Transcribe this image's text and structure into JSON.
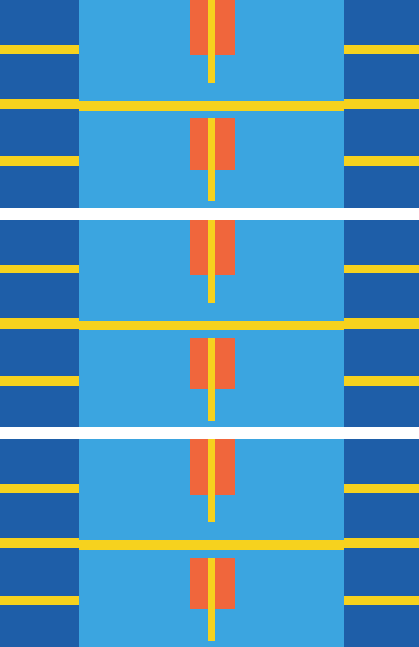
{
  "chart_data": [
    {
      "type": "heatmap",
      "tick_labels": false,
      "x": [
        0,
        100,
        240,
        263,
        272,
        297,
        435,
        530
      ],
      "y": [
        0,
        57,
        68,
        70,
        105,
        125,
        128,
        138,
        140,
        150,
        198,
        210,
        215,
        255,
        263
      ],
      "xlim": [
        0,
        530
      ],
      "ylim": [
        263,
        0
      ],
      "zlim": [
        0,
        3
      ],
      "colors": [
        "#3ba5e0",
        "#1e5ea8",
        "#f6d21e",
        "#f0663c"
      ],
      "z": [
        [
          1,
          0,
          3,
          2,
          3,
          0,
          1
        ],
        [
          2,
          0,
          3,
          2,
          3,
          0,
          2
        ],
        [
          1,
          0,
          3,
          2,
          3,
          0,
          1
        ],
        [
          1,
          0,
          0,
          2,
          0,
          0,
          1
        ],
        [
          1,
          0,
          0,
          0,
          0,
          0,
          1
        ],
        [
          2,
          0,
          0,
          0,
          0,
          0,
          2
        ],
        [
          2,
          2,
          2,
          2,
          2,
          2,
          2
        ],
        [
          1,
          2,
          2,
          2,
          2,
          2,
          1
        ],
        [
          1,
          0,
          0,
          0,
          0,
          0,
          1
        ],
        [
          1,
          0,
          3,
          2,
          3,
          0,
          1
        ],
        [
          2,
          0,
          3,
          2,
          3,
          0,
          2
        ],
        [
          1,
          0,
          3,
          2,
          3,
          0,
          1
        ],
        [
          1,
          0,
          0,
          2,
          0,
          0,
          1
        ],
        [
          1,
          0,
          0,
          0,
          0,
          0,
          1
        ]
      ]
    },
    {
      "type": "heatmap",
      "tick_labels": false,
      "x": [
        0,
        100,
        240,
        263,
        272,
        297,
        435,
        530
      ],
      "y": [
        0,
        57,
        68,
        70,
        105,
        125,
        128,
        138,
        140,
        150,
        198,
        210,
        215,
        255,
        263
      ],
      "xlim": [
        0,
        530
      ],
      "ylim": [
        263,
        0
      ],
      "zlim": [
        0,
        3
      ],
      "colors": [
        "#3ba5e0",
        "#1e5ea8",
        "#f6d21e",
        "#f0663c"
      ],
      "z": [
        [
          1,
          0,
          3,
          2,
          3,
          0,
          1
        ],
        [
          2,
          0,
          3,
          2,
          3,
          0,
          2
        ],
        [
          1,
          0,
          3,
          2,
          3,
          0,
          1
        ],
        [
          1,
          0,
          0,
          2,
          0,
          0,
          1
        ],
        [
          1,
          0,
          0,
          0,
          0,
          0,
          1
        ],
        [
          2,
          0,
          0,
          0,
          0,
          0,
          2
        ],
        [
          2,
          2,
          2,
          2,
          2,
          2,
          2
        ],
        [
          1,
          2,
          2,
          2,
          2,
          2,
          1
        ],
        [
          1,
          0,
          0,
          0,
          0,
          0,
          1
        ],
        [
          1,
          0,
          3,
          2,
          3,
          0,
          1
        ],
        [
          2,
          0,
          3,
          2,
          3,
          0,
          2
        ],
        [
          1,
          0,
          3,
          2,
          3,
          0,
          1
        ],
        [
          1,
          0,
          0,
          2,
          0,
          0,
          1
        ],
        [
          1,
          0,
          0,
          0,
          0,
          0,
          1
        ]
      ]
    },
    {
      "type": "heatmap",
      "tick_labels": false,
      "x": [
        0,
        100,
        240,
        263,
        272,
        297,
        435,
        530
      ],
      "y": [
        0,
        57,
        68,
        70,
        105,
        125,
        128,
        138,
        140,
        150,
        198,
        210,
        215,
        255,
        263
      ],
      "xlim": [
        0,
        530
      ],
      "ylim": [
        263,
        0
      ],
      "zlim": [
        0,
        3
      ],
      "colors": [
        "#3ba5e0",
        "#1e5ea8",
        "#f6d21e",
        "#f0663c"
      ],
      "z": [
        [
          1,
          0,
          3,
          2,
          3,
          0,
          1
        ],
        [
          2,
          0,
          3,
          2,
          3,
          0,
          2
        ],
        [
          1,
          0,
          3,
          2,
          3,
          0,
          1
        ],
        [
          1,
          0,
          0,
          2,
          0,
          0,
          1
        ],
        [
          1,
          0,
          0,
          0,
          0,
          0,
          1
        ],
        [
          2,
          0,
          0,
          0,
          0,
          0,
          2
        ],
        [
          2,
          2,
          2,
          2,
          2,
          2,
          2
        ],
        [
          1,
          2,
          2,
          2,
          2,
          2,
          1
        ],
        [
          1,
          0,
          0,
          0,
          0,
          0,
          1
        ],
        [
          1,
          0,
          3,
          2,
          3,
          0,
          1
        ],
        [
          2,
          0,
          3,
          2,
          3,
          0,
          2
        ],
        [
          1,
          0,
          3,
          2,
          3,
          0,
          1
        ],
        [
          1,
          0,
          0,
          2,
          0,
          0,
          1
        ],
        [
          1,
          0,
          0,
          0,
          0,
          0,
          1
        ]
      ]
    }
  ]
}
